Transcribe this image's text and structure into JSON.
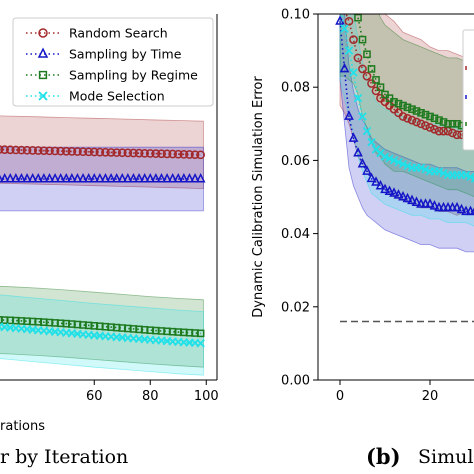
{
  "chart_data": [
    {
      "type": "line",
      "title": "",
      "xlabel": "Iterations",
      "ylabel": "",
      "xlim": [
        0,
        100
      ],
      "ylim": [
        0,
        0.1
      ],
      "xticks": [
        60,
        80,
        100
      ],
      "grid": false,
      "legend_position": "top-right",
      "caption": "r by Iteration",
      "x": [
        0,
        10,
        20,
        30,
        40,
        50,
        60,
        70,
        80,
        90,
        99
      ],
      "series": [
        {
          "name": "Random Search",
          "color": "#a3282a",
          "marker": "circle",
          "values": [
            0.0635,
            0.0633,
            0.0631,
            0.0629,
            0.0627,
            0.0625,
            0.0623,
            0.0621,
            0.0619,
            0.0617,
            0.0615
          ],
          "band": [
            0.0092,
            0.0092,
            0.0092,
            0.0092,
            0.0092,
            0.0092,
            0.0092,
            0.0092,
            0.0092,
            0.0092,
            0.0092
          ]
        },
        {
          "name": "Sampling by Time",
          "color": "#1515c8",
          "marker": "triangle",
          "values": [
            0.0549,
            0.0549,
            0.0549,
            0.0549,
            0.0549,
            0.0549,
            0.0549,
            0.0549,
            0.0549,
            0.0549,
            0.0549
          ],
          "band": [
            0.0087,
            0.0087,
            0.0087,
            0.0087,
            0.0087,
            0.0087,
            0.0087,
            0.0087,
            0.0087,
            0.0087,
            0.0087
          ]
        },
        {
          "name": "Sampling by Regime",
          "color": "#1e7a1e",
          "marker": "square",
          "values": [
            0.0169,
            0.0168,
            0.0166,
            0.0163,
            0.0159,
            0.0154,
            0.0148,
            0.0142,
            0.0136,
            0.0131,
            0.0127
          ],
          "band": [
            0.0092,
            0.0092,
            0.0092,
            0.0092,
            0.0092,
            0.0092,
            0.0092,
            0.0092,
            0.0092,
            0.0092,
            0.0092
          ]
        },
        {
          "name": "Mode Selection",
          "color": "#20e0e8",
          "marker": "x",
          "values": [
            0.016,
            0.0156,
            0.015,
            0.0143,
            0.0136,
            0.0129,
            0.0122,
            0.0116,
            0.011,
            0.0104,
            0.01
          ],
          "band": [
            0.0087,
            0.0087,
            0.0087,
            0.0087,
            0.0087,
            0.0087,
            0.0087,
            0.0087,
            0.0087,
            0.0087,
            0.0087
          ]
        }
      ]
    },
    {
      "type": "line",
      "title": "",
      "xlabel": "",
      "ylabel": "Dynamic Calibration Simulation Error",
      "xlim": [
        -3,
        35
      ],
      "ylim": [
        0,
        0.1
      ],
      "xticks": [
        0,
        20
      ],
      "yticks": [
        0.0,
        0.02,
        0.04,
        0.06,
        0.08,
        0.1
      ],
      "ytick_labels": [
        "0.00",
        "0.02",
        "0.04",
        "0.06",
        "0.08",
        "0.10"
      ],
      "grid": false,
      "caption_label": "(b)",
      "caption": "Simul",
      "reference_line": 0.016,
      "x": [
        0,
        1,
        2,
        3,
        4,
        5,
        6,
        7,
        8,
        9,
        10,
        12,
        14,
        16,
        18,
        20,
        22,
        24,
        26,
        28,
        30,
        32,
        34
      ],
      "series": [
        {
          "name": "Random Search",
          "color": "#a3282a",
          "marker": "circle",
          "values": [
            0.103,
            0.101,
            0.098,
            0.093,
            0.088,
            0.085,
            0.083,
            0.081,
            0.079,
            0.077,
            0.076,
            0.074,
            0.072,
            0.071,
            0.07,
            0.069,
            0.068,
            0.068,
            0.067,
            0.067,
            0.066,
            0.066,
            0.065
          ],
          "band": [
            0.028,
            0.028,
            0.028,
            0.027,
            0.027,
            0.026,
            0.026,
            0.025,
            0.025,
            0.024,
            0.024,
            0.024,
            0.023,
            0.023,
            0.023,
            0.022,
            0.022,
            0.022,
            0.022,
            0.021,
            0.021,
            0.021,
            0.021
          ]
        },
        {
          "name": "Sampling by Time",
          "color": "#1515c8",
          "marker": "triangle",
          "values": [
            0.098,
            0.085,
            0.072,
            0.066,
            0.062,
            0.059,
            0.057,
            0.055,
            0.054,
            0.053,
            0.052,
            0.051,
            0.05,
            0.049,
            0.048,
            0.048,
            0.047,
            0.047,
            0.047,
            0.046,
            0.046,
            0.046,
            0.046
          ],
          "band": [
            0.016,
            0.015,
            0.014,
            0.013,
            0.012,
            0.012,
            0.012,
            0.011,
            0.011,
            0.011,
            0.011,
            0.011,
            0.011,
            0.011,
            0.011,
            0.011,
            0.011,
            0.011,
            0.011,
            0.011,
            0.011,
            0.011,
            0.011
          ]
        },
        {
          "name": "Sampling by Regime",
          "color": "#1e7a1e",
          "marker": "square",
          "values": [
            0.105,
            0.105,
            0.104,
            0.103,
            0.099,
            0.093,
            0.089,
            0.085,
            0.082,
            0.08,
            0.078,
            0.076,
            0.075,
            0.074,
            0.073,
            0.072,
            0.071,
            0.07,
            0.07,
            0.069,
            0.068,
            0.068,
            0.068
          ],
          "band": [
            0.022,
            0.022,
            0.022,
            0.022,
            0.021,
            0.021,
            0.02,
            0.02,
            0.02,
            0.019,
            0.019,
            0.019,
            0.018,
            0.018,
            0.018,
            0.018,
            0.018,
            0.018,
            0.018,
            0.018,
            0.018,
            0.018,
            0.018
          ]
        },
        {
          "name": "Mode Selection",
          "color": "#20e0e8",
          "marker": "x",
          "values": [
            0.102,
            0.096,
            0.09,
            0.084,
            0.077,
            0.072,
            0.068,
            0.065,
            0.063,
            0.062,
            0.061,
            0.06,
            0.059,
            0.058,
            0.058,
            0.057,
            0.057,
            0.056,
            0.056,
            0.056,
            0.055,
            0.055,
            0.055
          ],
          "band": [
            0.02,
            0.019,
            0.018,
            0.017,
            0.016,
            0.015,
            0.014,
            0.014,
            0.013,
            0.013,
            0.013,
            0.013,
            0.013,
            0.013,
            0.013,
            0.013,
            0.013,
            0.013,
            0.013,
            0.013,
            0.013,
            0.013,
            0.013
          ]
        }
      ]
    }
  ]
}
